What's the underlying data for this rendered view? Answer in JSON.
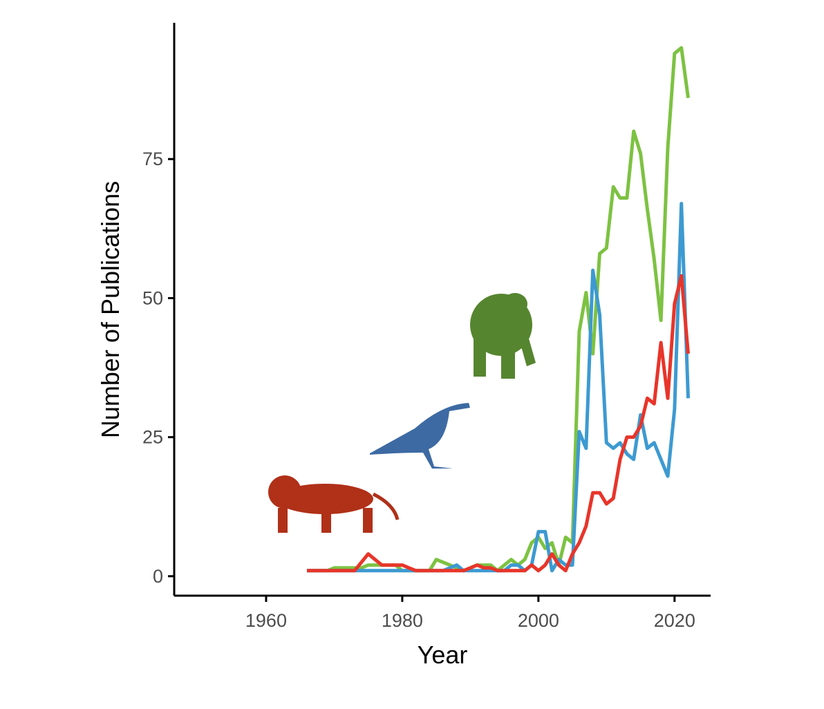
{
  "chart_data": {
    "type": "line",
    "x_label": "Year",
    "y_label": "Number of Publications",
    "x": [
      1966,
      1967,
      1968,
      1969,
      1970,
      1971,
      1972,
      1973,
      1974,
      1975,
      1976,
      1977,
      1978,
      1979,
      1980,
      1981,
      1982,
      1983,
      1984,
      1985,
      1986,
      1987,
      1988,
      1989,
      1990,
      1991,
      1992,
      1993,
      1994,
      1995,
      1996,
      1997,
      1998,
      1999,
      2000,
      2001,
      2002,
      2003,
      2004,
      2005,
      2006,
      2007,
      2008,
      2009,
      2010,
      2011,
      2012,
      2013,
      2014,
      2015,
      2016,
      2017,
      2018,
      2019,
      2020,
      2021,
      2022
    ],
    "series": [
      {
        "color": "#7dc242",
        "values": [
          1,
          1,
          1,
          1,
          1.5,
          1.5,
          1.5,
          1.5,
          1.5,
          2,
          2,
          2,
          2,
          2,
          1,
          1,
          1,
          1,
          1,
          3,
          2.5,
          2,
          1.5,
          1,
          1.5,
          2,
          2,
          2,
          1,
          2,
          3,
          2,
          3,
          6,
          7,
          5,
          6,
          2,
          7,
          6,
          44,
          51,
          40,
          58,
          59,
          70,
          68,
          68,
          80,
          76,
          66,
          57,
          46,
          77,
          94,
          95,
          86
        ]
      },
      {
        "color": "#3d9ad1",
        "values": [
          1,
          1,
          1,
          1,
          1,
          1,
          1,
          1,
          1,
          1,
          1,
          1,
          1,
          1,
          1,
          1,
          1,
          1,
          1,
          1,
          1,
          1.5,
          2,
          1,
          1,
          1,
          1,
          1,
          1,
          1,
          2,
          2,
          1,
          2,
          8,
          8,
          1,
          3,
          2,
          2,
          26,
          23,
          55,
          47,
          24,
          23,
          24,
          22,
          21,
          29,
          23,
          24,
          21,
          18,
          30,
          67,
          32
        ]
      },
      {
        "color": "#e8352a",
        "values": [
          1,
          1,
          1,
          1,
          1,
          1,
          1,
          1,
          2.5,
          4,
          3,
          2,
          2,
          2,
          2,
          1.5,
          1,
          1,
          1,
          1,
          1,
          1,
          1,
          1,
          1.5,
          2,
          1.5,
          1.5,
          1,
          1,
          1,
          1,
          1,
          2,
          1,
          2,
          4,
          2,
          1,
          4,
          6,
          9,
          15,
          15,
          13,
          14,
          21,
          25,
          25,
          27,
          32,
          31,
          42,
          32,
          49,
          54,
          40
        ]
      }
    ],
    "xlim": [
      1946.5,
      2025.3
    ],
    "ylim": [
      -3.5,
      99.5
    ],
    "xticks": [
      1960,
      1980,
      2000,
      2020
    ],
    "yticks": [
      0,
      25,
      50,
      75
    ]
  }
}
